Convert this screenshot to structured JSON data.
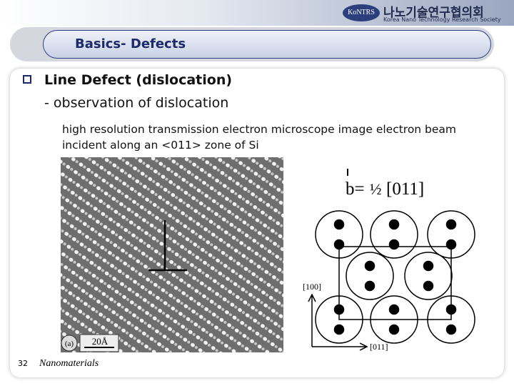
{
  "header": {
    "org_abbr": "KoNTRS",
    "org_name_ko": "나노기술연구협의회",
    "org_name_en": "Korea Nano Technology Research Society"
  },
  "slide": {
    "title": "Basics- Defects"
  },
  "body": {
    "bullet": "Line Defect (dislocation)",
    "sub": "- observation of dislocation",
    "caption": "high resolution transmission electron microscope image electron beam incident along an <011> zone of Si"
  },
  "figure": {
    "label": "(a)",
    "scale": "20Å"
  },
  "diagram": {
    "burgers": "b=",
    "fraction": "½",
    "direction": "[011]",
    "axis_vertical": "[100]",
    "axis_horizontal": "[011]"
  },
  "footer": {
    "page": "32",
    "course": "Nanomaterials"
  }
}
